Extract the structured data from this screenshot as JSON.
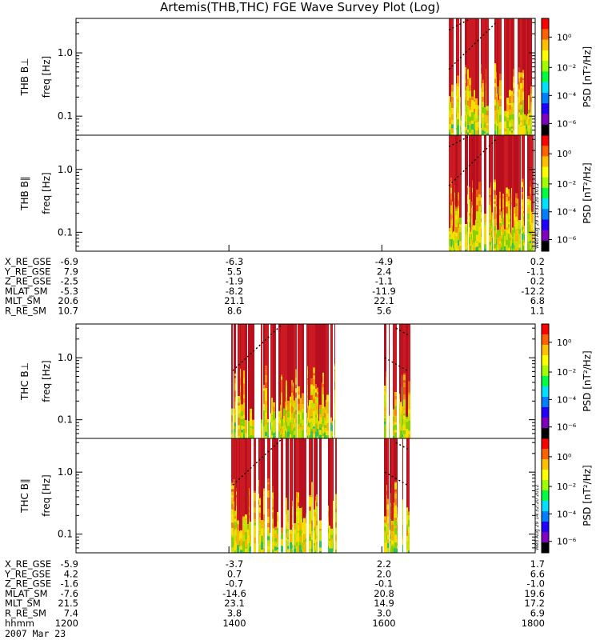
{
  "title": "Artemis(THB,THC) FGE Wave Survey Plot (Log)",
  "chart_data": [
    {
      "type": "heatmap",
      "probe": "THB",
      "panels": [
        {
          "ylabel_line1": "THB B⊥",
          "ylabel_line2": "freq [Hz]",
          "yticks": [
            "1.0",
            "0.1"
          ],
          "ylim_hz": [
            0.05,
            3.5
          ],
          "yscale": "log"
        },
        {
          "ylabel_line1": "THB B∥",
          "ylabel_line2": "freq [Hz]",
          "yticks": [
            "1.0",
            "0.1"
          ],
          "ylim_hz": [
            0.05,
            3.5
          ],
          "yscale": "log"
        }
      ],
      "colorbar": {
        "label": "PSD [nT²/Hz]",
        "ticks": [
          "10⁰",
          "10⁻²",
          "10⁻⁴",
          "10⁻⁶"
        ],
        "scale": "log"
      },
      "timestamp_vertical": "Wed Aug 29 14:32:20 2012",
      "ephemeris": {
        "rows": [
          {
            "label": "X_RE_GSE",
            "values": [
              "-6.9",
              "-6.3",
              "-4.9",
              "0.2"
            ]
          },
          {
            "label": "Y_RE_GSE",
            "values": [
              "7.9",
              "5.5",
              "2.4",
              "-1.1"
            ]
          },
          {
            "label": "Z_RE_GSE",
            "values": [
              "-2.5",
              "-1.9",
              "-1.1",
              "0.2"
            ]
          },
          {
            "label": "MLAT_SM",
            "values": [
              "-5.3",
              "-8.2",
              "-11.9",
              "-12.2"
            ]
          },
          {
            "label": "MLT_SM",
            "values": [
              "20.6",
              "21.1",
              "22.1",
              "6.8"
            ]
          },
          {
            "label": "R_RE_SM",
            "values": [
              "10.7",
              "8.6",
              "5.6",
              "1.1"
            ]
          }
        ]
      }
    },
    {
      "type": "heatmap",
      "probe": "THC",
      "panels": [
        {
          "ylabel_line1": "THC B⊥",
          "ylabel_line2": "freq [Hz]",
          "yticks": [
            "1.0",
            "0.1"
          ],
          "ylim_hz": [
            0.05,
            3.5
          ],
          "yscale": "log"
        },
        {
          "ylabel_line1": "THC B∥",
          "ylabel_line2": "freq [Hz]",
          "yticks": [
            "1.0",
            "0.1"
          ],
          "ylim_hz": [
            0.05,
            3.5
          ],
          "yscale": "log"
        }
      ],
      "colorbar": {
        "label": "PSD [nT²/Hz]",
        "ticks": [
          "10⁰",
          "10⁻²",
          "10⁻⁴",
          "10⁻⁶"
        ],
        "scale": "log"
      },
      "timestamp_vertical": "Wed Aug 29 14:32:20 2012",
      "ephemeris": {
        "rows": [
          {
            "label": "X_RE_GSE",
            "values": [
              "-5.9",
              "-3.7",
              "2.2",
              "1.7"
            ]
          },
          {
            "label": "Y_RE_GSE",
            "values": [
              "4.2",
              "0.7",
              "2.0",
              "6.6"
            ]
          },
          {
            "label": "Z_RE_GSE",
            "values": [
              "-1.6",
              "-0.7",
              "-0.1",
              "-1.0"
            ]
          },
          {
            "label": "MLAT_SM",
            "values": [
              "-7.6",
              "-14.6",
              "20.8",
              "19.6"
            ]
          },
          {
            "label": "MLT_SM",
            "values": [
              "21.5",
              "23.1",
              "14.9",
              "17.2"
            ]
          },
          {
            "label": "R_RE_SM",
            "values": [
              "7.4",
              "3.8",
              "3.0",
              "6.9"
            ]
          },
          {
            "label": "hhmm",
            "values": [
              "1200",
              "1400",
              "1600",
              "1800"
            ]
          }
        ]
      },
      "x_time_hhmm": [
        "1200",
        "1400",
        "1600",
        "1800"
      ]
    }
  ],
  "date": "2007 Mar 23"
}
